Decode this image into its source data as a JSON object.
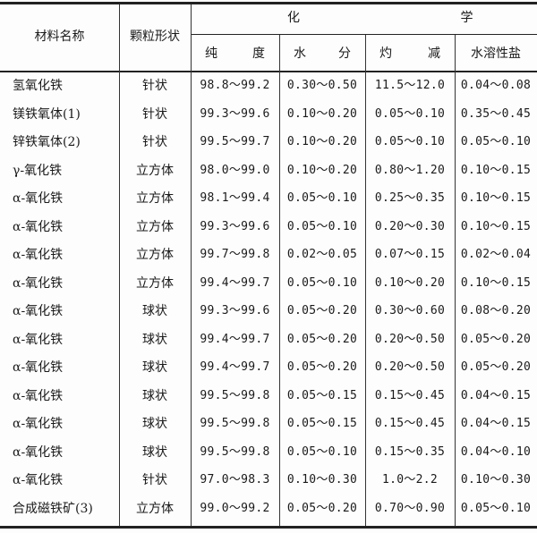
{
  "header": {
    "name": "材料名称",
    "shape": "颗粒形状",
    "group_left": "化",
    "group_right": "学",
    "sub": [
      {
        "a": "纯",
        "b": "度"
      },
      {
        "a": "水",
        "b": "分"
      },
      {
        "a": "灼",
        "b": "减"
      },
      {
        "full": "水溶性盐"
      }
    ]
  },
  "rows": [
    {
      "name": "氢氧化铁",
      "shape": "针状",
      "purity": "98.8～99.2",
      "moisture": "0.30～0.50",
      "ignition_loss": "11.5～12.0",
      "soluble_salt": "0.04～0.08"
    },
    {
      "name": "镁铁氧体(1)",
      "shape": "针状",
      "purity": "99.3～99.6",
      "moisture": "0.10～0.20",
      "ignition_loss": "0.05～0.10",
      "soluble_salt": "0.35～0.45"
    },
    {
      "name": "锌铁氧体(2)",
      "shape": "针状",
      "purity": "99.5～99.7",
      "moisture": "0.10～0.20",
      "ignition_loss": "0.05～0.10",
      "soluble_salt": "0.05～0.10"
    },
    {
      "name": "γ-氧化铁",
      "shape": "立方体",
      "purity": "98.0～99.0",
      "moisture": "0.10～0.20",
      "ignition_loss": "0.80～1.20",
      "soluble_salt": "0.10～0.15"
    },
    {
      "name": "α-氧化铁",
      "shape": "立方体",
      "purity": "98.1～99.4",
      "moisture": "0.05～0.10",
      "ignition_loss": "0.25～0.35",
      "soluble_salt": "0.10～0.15"
    },
    {
      "name": "α-氧化铁",
      "shape": "立方体",
      "purity": "99.3～99.6",
      "moisture": "0.05～0.10",
      "ignition_loss": "0.20～0.30",
      "soluble_salt": "0.10～0.15"
    },
    {
      "name": "α-氧化铁",
      "shape": "立方体",
      "purity": "99.7～99.8",
      "moisture": "0.02～0.05",
      "ignition_loss": "0.07～0.15",
      "soluble_salt": "0.02～0.04"
    },
    {
      "name": "α-氧化铁",
      "shape": "立方体",
      "purity": "99.4～99.7",
      "moisture": "0.05～0.10",
      "ignition_loss": "0.10～0.20",
      "soluble_salt": "0.10～0.15"
    },
    {
      "name": "α-氧化铁",
      "shape": "球状",
      "purity": "99.3～99.6",
      "moisture": "0.05～0.20",
      "ignition_loss": "0.30～0.60",
      "soluble_salt": "0.08～0.20"
    },
    {
      "name": "α-氧化铁",
      "shape": "球状",
      "purity": "99.4～99.7",
      "moisture": "0.05～0.20",
      "ignition_loss": "0.20～0.50",
      "soluble_salt": "0.05～0.20"
    },
    {
      "name": "α-氧化铁",
      "shape": "球状",
      "purity": "99.4～99.7",
      "moisture": "0.05～0.20",
      "ignition_loss": "0.20～0.50",
      "soluble_salt": "0.05～0.20"
    },
    {
      "name": "α-氧化铁",
      "shape": "球状",
      "purity": "99.5～99.8",
      "moisture": "0.05～0.15",
      "ignition_loss": "0.15～0.45",
      "soluble_salt": "0.04～0.15"
    },
    {
      "name": "α-氧化铁",
      "shape": "球状",
      "purity": "99.5～99.8",
      "moisture": "0.05～0.15",
      "ignition_loss": "0.15～0.45",
      "soluble_salt": "0.04～0.15"
    },
    {
      "name": "α-氧化铁",
      "shape": "球状",
      "purity": "99.5～99.8",
      "moisture": "0.05～0.10",
      "ignition_loss": "0.15～0.35",
      "soluble_salt": "0.04～0.10"
    },
    {
      "name": "α-氧化铁",
      "shape": "针状",
      "purity": "97.0～98.3",
      "moisture": "0.10～0.30",
      "ignition_loss": "1.0～2.2",
      "soluble_salt": "0.10～0.30"
    },
    {
      "name": "合成磁铁矿(3)",
      "shape": "立方体",
      "purity": "99.0～99.2",
      "moisture": "0.05～0.20",
      "ignition_loss": "0.70～0.90",
      "soluble_salt": "0.05～0.10"
    }
  ]
}
